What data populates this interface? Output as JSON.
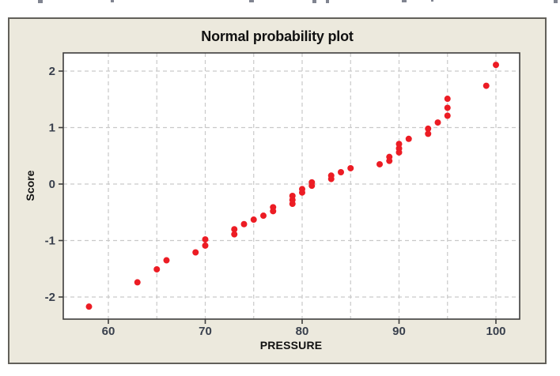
{
  "chart_data": {
    "type": "scatter",
    "title": "Normal probability plot",
    "xlabel": "PRESSURE",
    "ylabel": "Score",
    "x_tick_labels": [
      60,
      70,
      80,
      90,
      100
    ],
    "x_gridlines": [
      60,
      65,
      70,
      75,
      80,
      85,
      90,
      95,
      100
    ],
    "y_tick_labels": [
      2,
      1,
      0,
      -1,
      -2
    ],
    "y_gridlines": [
      2,
      1,
      0,
      -1,
      -2
    ],
    "xlim": [
      55.3,
      102.5
    ],
    "ylim": [
      -2.35,
      2.3
    ],
    "grid": "dashed",
    "legend_position": "none",
    "marker": {
      "shape": "circle",
      "color": "#EC1C24"
    },
    "plot_bg": "#FFFFFF",
    "panel_bg": "#ECE9DD",
    "grid_color": "#C9C9C9",
    "axis_color": "#3D3D3D",
    "points": [
      [
        58,
        -2.17
      ],
      [
        63,
        -1.74
      ],
      [
        65,
        -1.51
      ],
      [
        66,
        -1.35
      ],
      [
        69,
        -1.21
      ],
      [
        70,
        -1.09
      ],
      [
        70,
        -0.98
      ],
      [
        73,
        -0.89
      ],
      [
        73,
        -0.8
      ],
      [
        74,
        -0.71
      ],
      [
        75,
        -0.63
      ],
      [
        76,
        -0.56
      ],
      [
        77,
        -0.48
      ],
      [
        77,
        -0.41
      ],
      [
        79,
        -0.35
      ],
      [
        79,
        -0.28
      ],
      [
        79,
        -0.21
      ],
      [
        80,
        -0.15
      ],
      [
        80,
        -0.09
      ],
      [
        81,
        -0.03
      ],
      [
        81,
        0.03
      ],
      [
        83,
        0.09
      ],
      [
        83,
        0.15
      ],
      [
        84,
        0.21
      ],
      [
        85,
        0.28
      ],
      [
        88,
        0.35
      ],
      [
        89,
        0.41
      ],
      [
        89,
        0.48
      ],
      [
        90,
        0.56
      ],
      [
        90,
        0.63
      ],
      [
        90,
        0.71
      ],
      [
        91,
        0.8
      ],
      [
        93,
        0.89
      ],
      [
        93,
        0.98
      ],
      [
        94,
        1.09
      ],
      [
        95,
        1.21
      ],
      [
        95,
        1.35
      ],
      [
        95,
        1.51
      ],
      [
        99,
        1.74
      ],
      [
        100,
        2.11
      ]
    ]
  }
}
